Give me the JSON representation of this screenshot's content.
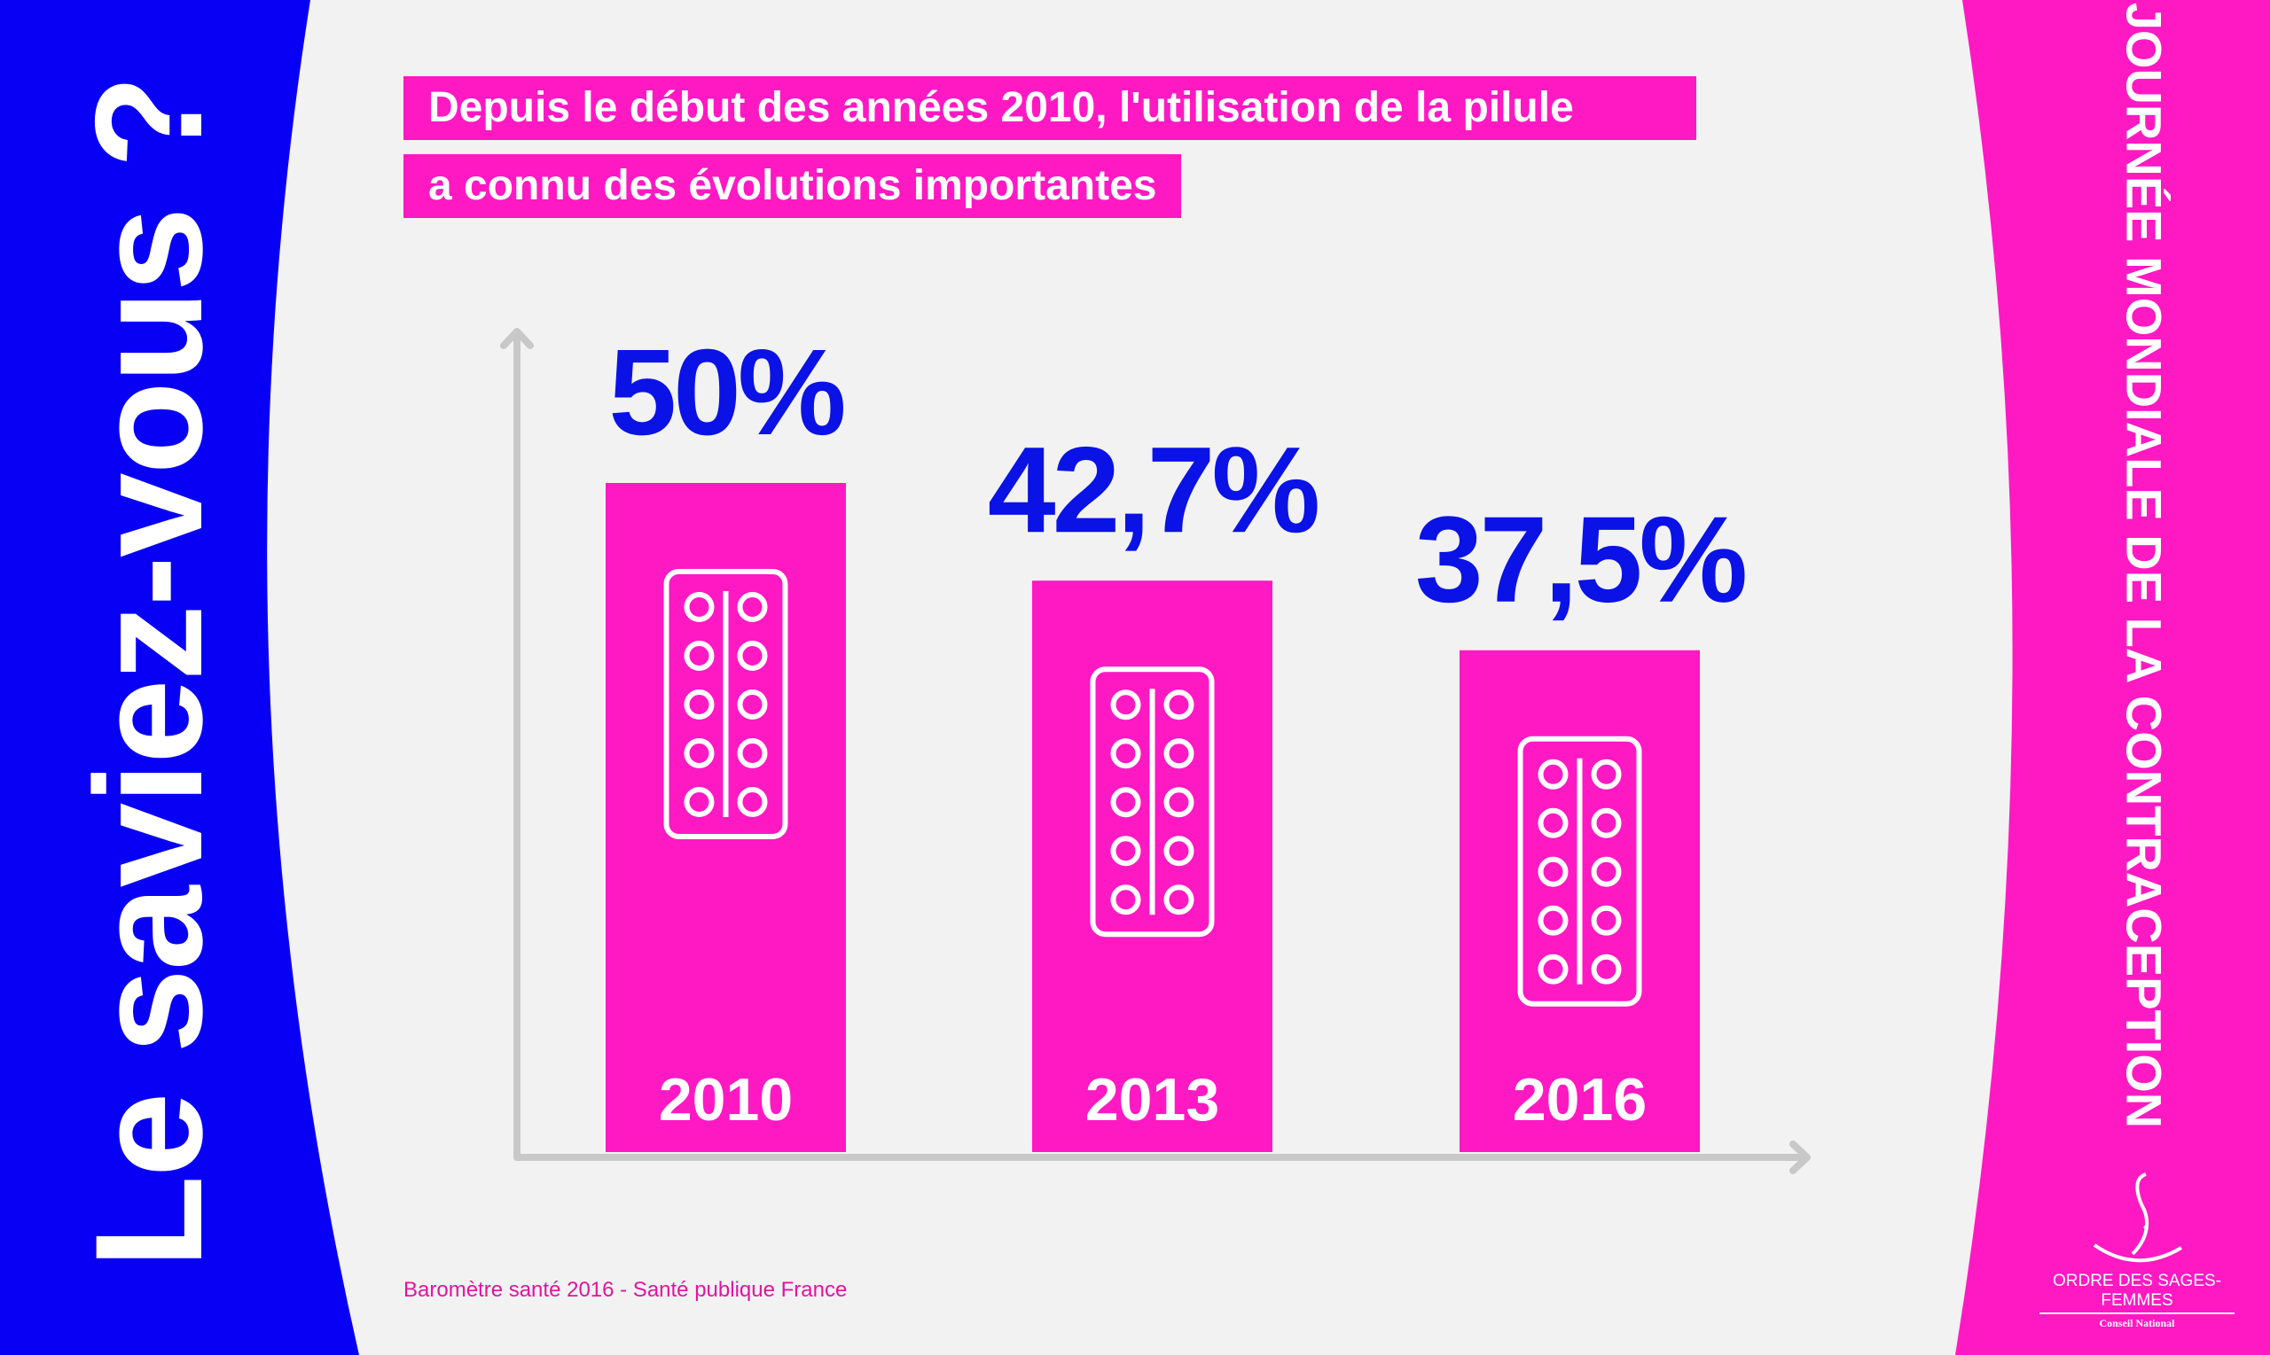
{
  "colors": {
    "left_panel": "#0800f5",
    "right_panel": "#ff19c3",
    "background": "#f2f2f2",
    "bar": "#ff19c3",
    "value_text": "#0a12e6",
    "axis": "#c8c8c8"
  },
  "side_title": "Le saviez-vous ?",
  "side_banner": "JOURNÉE MONDIALE DE LA CONTRACEPTION",
  "headline": {
    "line1": "Depuis le début des années 2010, l'utilisation de la pilule",
    "line2": "a connu des évolutions importantes"
  },
  "source": "Baromètre santé 2016 - Santé publique France",
  "logo": {
    "name": "ORDRE DES SAGES-FEMMES",
    "subtitle": "Conseil National"
  },
  "chart_data": {
    "type": "bar",
    "categories": [
      "2010",
      "2013",
      "2016"
    ],
    "values": [
      50,
      42.7,
      37.5
    ],
    "data_labels": [
      "50%",
      "42,7%",
      "37,5%"
    ],
    "bar_icon": "pill-blister-icon",
    "title": "",
    "xlabel": "",
    "ylabel": "",
    "grid": false
  }
}
